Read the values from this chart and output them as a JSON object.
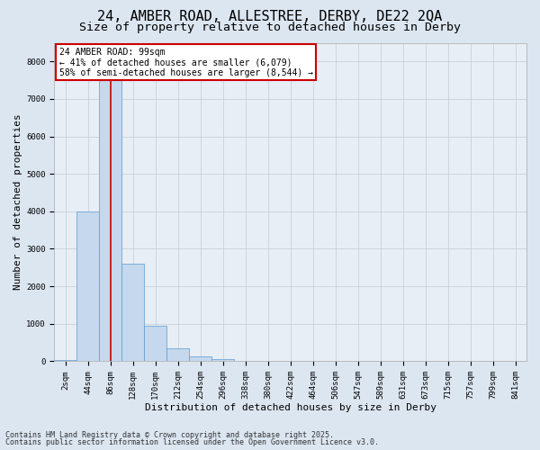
{
  "title_line1": "24, AMBER ROAD, ALLESTREE, DERBY, DE22 2QA",
  "title_line2": "Size of property relative to detached houses in Derby",
  "xlabel": "Distribution of detached houses by size in Derby",
  "ylabel": "Number of detached properties",
  "bin_labels": [
    "2sqm",
    "44sqm",
    "86sqm",
    "128sqm",
    "170sqm",
    "212sqm",
    "254sqm",
    "296sqm",
    "338sqm",
    "380sqm",
    "422sqm",
    "464sqm",
    "506sqm",
    "547sqm",
    "589sqm",
    "631sqm",
    "673sqm",
    "715sqm",
    "757sqm",
    "799sqm",
    "841sqm"
  ],
  "bin_values": [
    30,
    4000,
    7550,
    2600,
    950,
    350,
    120,
    50,
    0,
    0,
    0,
    0,
    0,
    0,
    0,
    0,
    0,
    0,
    0,
    0,
    0
  ],
  "bar_color": "#c5d8ed",
  "bar_edge_color": "#5b9bd5",
  "vline_x": 2.0,
  "annotation_text": "24 AMBER ROAD: 99sqm\n← 41% of detached houses are smaller (6,079)\n58% of semi-detached houses are larger (8,544) →",
  "annotation_box_facecolor": "#ffffff",
  "annotation_box_edgecolor": "#cc0000",
  "ylim": [
    0,
    8500
  ],
  "yticks": [
    0,
    1000,
    2000,
    3000,
    4000,
    5000,
    6000,
    7000,
    8000
  ],
  "grid_color": "#c0ccd8",
  "background_color": "#dce6f1",
  "plot_bg_color": "#e8eef5",
  "footer_line1": "Contains HM Land Registry data © Crown copyright and database right 2025.",
  "footer_line2": "Contains public sector information licensed under the Open Government Licence v3.0.",
  "vline_color": "#cc0000",
  "title_fontsize": 11,
  "subtitle_fontsize": 9.5,
  "axis_label_fontsize": 8,
  "tick_fontsize": 6.5,
  "annotation_fontsize": 7,
  "footer_fontsize": 6
}
